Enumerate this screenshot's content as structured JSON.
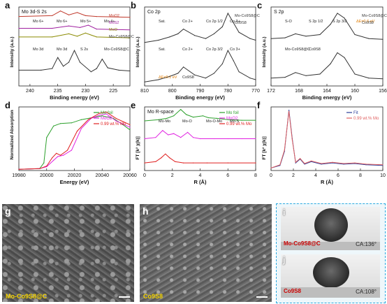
{
  "chart_data": [
    {
      "panel": "a",
      "type": "line",
      "title": "Mo 3d-S 2s",
      "xlabel": "Binding energy (eV)",
      "ylabel": "Intensity (a.u.)",
      "xlim": [
        242,
        222
      ],
      "xticks": [
        240,
        235,
        230,
        225
      ],
      "series": [
        {
          "name": "MoO2",
          "color": "#c0392b",
          "x": [
            242,
            236,
            234.5,
            233,
            231.5,
            230,
            228,
            222
          ],
          "y": [
            0.88,
            0.89,
            0.95,
            0.9,
            0.93,
            0.89,
            0.88,
            0.87
          ]
        },
        {
          "name": "MoS2",
          "color": "#a020a0",
          "x": [
            242,
            236,
            233,
            231,
            229.5,
            228,
            222
          ],
          "y": [
            0.73,
            0.73,
            0.76,
            0.74,
            0.77,
            0.72,
            0.71
          ]
        },
        {
          "name": "MoO",
          "color": "#8a8a00",
          "x": [
            242,
            236,
            233,
            231.5,
            230,
            228,
            222
          ],
          "y": [
            0.62,
            0.62,
            0.66,
            0.63,
            0.67,
            0.62,
            0.61
          ]
        },
        {
          "name": "Mo-Co9S8@C",
          "color": "#333333",
          "x": [
            242,
            238,
            236,
            235,
            234,
            233,
            232,
            231,
            229,
            228,
            227,
            226,
            224,
            222
          ],
          "y": [
            0.2,
            0.2,
            0.22,
            0.36,
            0.25,
            0.3,
            0.45,
            0.3,
            0.18,
            0.22,
            0.34,
            0.23,
            0.2,
            0.19
          ]
        }
      ],
      "labels": [
        "Mo 6+",
        "Mo 6+",
        "Mo 5+",
        "Mo 4+",
        "Mo 3d",
        "Mo 3d",
        "S 2s",
        "Mo-Co9S8@C"
      ]
    },
    {
      "panel": "b",
      "type": "line",
      "title": "Co 2p",
      "xlabel": "Binding energy (eV)",
      "ylabel": "Intensity (a.u.)",
      "xlim": [
        810,
        770
      ],
      "xticks": [
        810,
        800,
        790,
        780,
        770
      ],
      "series": [
        {
          "name": "Mo-Co9S8@C",
          "color": "#333333",
          "x": [
            810,
            805,
            801,
            798,
            796,
            792,
            788,
            785,
            782,
            780,
            778,
            776,
            772,
            770
          ],
          "y": [
            0.55,
            0.58,
            0.62,
            0.66,
            0.72,
            0.64,
            0.6,
            0.66,
            0.75,
            0.92,
            0.8,
            0.68,
            0.6,
            0.58
          ]
        },
        {
          "name": "Co9S8",
          "color": "#333333",
          "x": [
            810,
            805,
            801,
            798,
            796,
            792,
            788,
            785,
            782,
            780,
            778,
            776,
            772,
            770
          ],
          "y": [
            0.05,
            0.08,
            0.12,
            0.16,
            0.24,
            0.14,
            0.1,
            0.16,
            0.28,
            0.45,
            0.32,
            0.18,
            0.1,
            0.08
          ]
        }
      ],
      "labels": [
        "Sat.",
        "Co 2+",
        "Co 2p 1/2",
        "Co 3+",
        "Sat.",
        "Co 2+",
        "Co 2p 3/2",
        "Co 3+",
        "ΔE=0.1 eV",
        "Co9S8"
      ]
    },
    {
      "panel": "c",
      "type": "line",
      "title": "S 2p",
      "xlabel": "Binding energy (eV)",
      "ylabel": "Intensity (a.u.)",
      "xlim": [
        172,
        156
      ],
      "xticks": [
        172,
        168,
        164,
        160,
        156
      ],
      "series": [
        {
          "name": "Mo-Co9S8@C",
          "color": "#333333",
          "x": [
            172,
            170,
            168.5,
            167,
            165,
            163.5,
            162.5,
            161.5,
            160,
            158,
            156
          ],
          "y": [
            0.6,
            0.61,
            0.66,
            0.63,
            0.65,
            0.78,
            0.92,
            0.86,
            0.65,
            0.6,
            0.59
          ]
        },
        {
          "name": "Co9S8",
          "color": "#333333",
          "x": [
            172,
            170,
            168.5,
            167,
            165,
            163.5,
            162.5,
            161.5,
            160,
            158,
            156
          ],
          "y": [
            0.1,
            0.11,
            0.17,
            0.13,
            0.15,
            0.28,
            0.42,
            0.36,
            0.15,
            0.1,
            0.09
          ]
        }
      ],
      "labels": [
        "S-O",
        "S 2p 1/2",
        "S 2p 3/2",
        "ΔE=0.6 eV",
        "Mo-Co9S8@C",
        "Co9S8"
      ]
    },
    {
      "panel": "d",
      "type": "line",
      "xlabel": "Energy (eV)",
      "ylabel": "Normalized Absorption",
      "xlim": [
        19980,
        20060
      ],
      "xticks": [
        19980,
        20000,
        20020,
        20040,
        20060
      ],
      "series": [
        {
          "name": "Mo foil",
          "color": "#2ca02c",
          "x": [
            19980,
            19995,
            19998,
            20000,
            20005,
            20010,
            20018,
            20025,
            20035,
            20040,
            20048,
            20055,
            20060
          ],
          "y": [
            0.02,
            0.03,
            0.12,
            0.52,
            0.7,
            0.74,
            0.75,
            0.8,
            0.84,
            0.86,
            0.82,
            0.72,
            0.64
          ]
        },
        {
          "name": "MoO2",
          "color": "#e020e0",
          "x": [
            19980,
            19995,
            20000,
            20005,
            20008,
            20012,
            20018,
            20025,
            20032,
            20038,
            20043,
            20050,
            20060
          ],
          "y": [
            0.02,
            0.03,
            0.06,
            0.16,
            0.22,
            0.24,
            0.32,
            0.66,
            0.82,
            0.87,
            0.89,
            0.78,
            0.68
          ]
        },
        {
          "name": "0.99 wt.% Mo",
          "color": "#e02020",
          "x": [
            19980,
            19995,
            20000,
            20004,
            20007,
            20010,
            20015,
            20022,
            20030,
            20038,
            20043,
            20050,
            20060
          ],
          "y": [
            0.02,
            0.03,
            0.07,
            0.2,
            0.27,
            0.24,
            0.32,
            0.62,
            0.8,
            0.9,
            0.92,
            0.82,
            0.72
          ]
        }
      ]
    },
    {
      "panel": "e",
      "type": "line",
      "title": "Mo R-space",
      "xlabel": "R (Å)",
      "ylabel": "FT [k² χ(k)]",
      "xlim": [
        0,
        8
      ],
      "xticks": [
        0,
        2,
        4,
        6,
        8
      ],
      "series": [
        {
          "name": "Mo foil",
          "color": "#2ca02c",
          "x": [
            0,
            1,
            1.6,
            2.1,
            2.6,
            3.0,
            3.5,
            4.2,
            4.6,
            5.2,
            6,
            7,
            8
          ],
          "y": [
            0.78,
            0.8,
            0.82,
            0.86,
            0.96,
            0.88,
            0.84,
            0.86,
            0.83,
            0.82,
            0.8,
            0.79,
            0.79
          ]
        },
        {
          "name": "MoO2",
          "color": "#e020e0",
          "x": [
            0,
            0.8,
            1.3,
            1.7,
            2.1,
            2.6,
            3.1,
            3.5,
            4.0,
            5,
            6,
            7,
            8
          ],
          "y": [
            0.5,
            0.52,
            0.63,
            0.56,
            0.58,
            0.52,
            0.6,
            0.52,
            0.5,
            0.5,
            0.5,
            0.5,
            0.5
          ]
        },
        {
          "name": "0.99 wt.% Mo",
          "color": "#e02020",
          "x": [
            0,
            0.8,
            1.2,
            1.5,
            1.8,
            2.2,
            2.8,
            3.5,
            4.5,
            6,
            8
          ],
          "y": [
            0.12,
            0.14,
            0.2,
            0.26,
            0.2,
            0.14,
            0.12,
            0.12,
            0.12,
            0.12,
            0.12
          ]
        }
      ],
      "labels": [
        "Mo-Mo",
        "Mo-O",
        "Mo-O-Mo",
        "Mo-S"
      ]
    },
    {
      "panel": "f",
      "type": "line",
      "xlabel": "R (Å)",
      "ylabel": "FT [k² χ(k)]",
      "xlim": [
        0,
        10
      ],
      "xticks": [
        0,
        2,
        4,
        6,
        8,
        10
      ],
      "series": [
        {
          "name": "Fit",
          "color": "#2c3e9a",
          "x": [
            0,
            0.8,
            1.2,
            1.6,
            1.9,
            2.2,
            2.6,
            3,
            3.6,
            4.5,
            5.5,
            6.5,
            7.5,
            8.5,
            10
          ],
          "y": [
            0.04,
            0.08,
            0.3,
            0.95,
            0.5,
            0.12,
            0.18,
            0.1,
            0.14,
            0.1,
            0.12,
            0.1,
            0.11,
            0.09,
            0.08
          ]
        },
        {
          "name": "0.99 wt.% Mo",
          "color": "#e06060",
          "x": [
            0,
            0.8,
            1.2,
            1.6,
            1.9,
            2.2,
            2.6,
            3,
            3.6,
            4.5,
            5.5,
            6.5,
            7.5,
            8.5,
            10
          ],
          "y": [
            0.04,
            0.09,
            0.32,
            0.93,
            0.48,
            0.13,
            0.19,
            0.11,
            0.15,
            0.11,
            0.13,
            0.11,
            0.12,
            0.1,
            0.09
          ]
        }
      ]
    }
  ],
  "images": {
    "g_label": "Mo-Co9S8@C",
    "h_label": "Co9S8",
    "i_label": "Mo-Co9S8@C",
    "i_ca": "CA:136°",
    "j_label": "Co9S8",
    "j_ca": "CA:108°"
  },
  "panel_letters": [
    "a",
    "b",
    "c",
    "d",
    "e",
    "f",
    "g",
    "h",
    "i",
    "j"
  ],
  "colors": {
    "dashed_box": "#2aa9e0",
    "yellow_label": "#f5d400",
    "red_label": "#cc0000"
  }
}
